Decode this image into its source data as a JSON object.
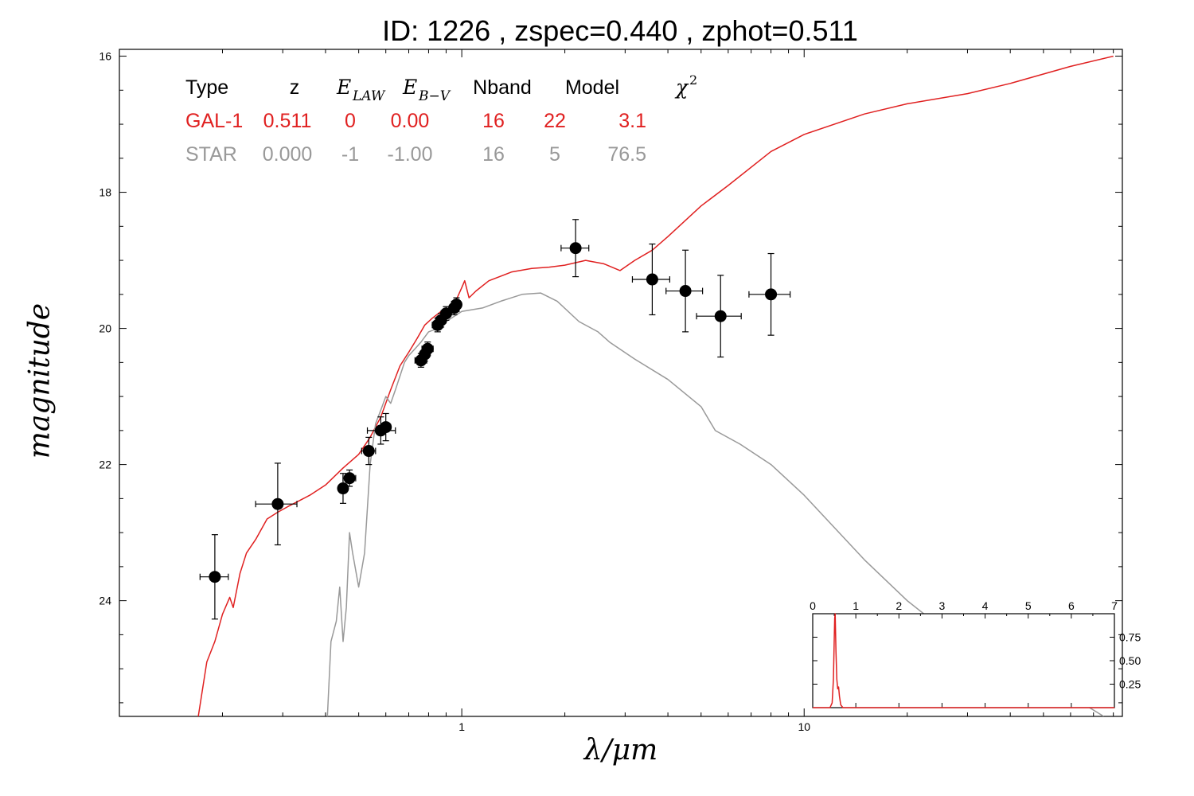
{
  "chart_data": [
    {
      "type": "line",
      "title": "ID:  1226  , zspec=0.440 , zphot=0.511",
      "xlabel": "λ/μm",
      "ylabel": "magnitude",
      "xscale": "log",
      "xlim": [
        0.1,
        85
      ],
      "ylim": [
        25.7,
        15.9
      ],
      "y_ticks": [
        "16",
        "18",
        "20",
        "22",
        "24"
      ],
      "x_ticks": [
        "1",
        "10"
      ],
      "grid": false,
      "legend": {
        "placement": "top-left",
        "columns": [
          "Type",
          "z",
          "E_LAW",
          "E_B−V",
          "Nband",
          "Model",
          "χ²"
        ],
        "column_headers": {
          "type": "Type",
          "z": "z",
          "elaw": "E",
          "elaw_sub": "LAW",
          "ebv": "E",
          "ebv_sub": "B−V",
          "nband": "Nband",
          "model": "Model",
          "chi": "χ",
          "chi_sup": "2"
        },
        "rows": [
          {
            "type": "GAL-1",
            "z": "0.511",
            "elaw": "0",
            "ebv": "0.00",
            "nband": "16",
            "model": "22",
            "chi2": "3.1",
            "color": "#e02020"
          },
          {
            "type": "STAR",
            "z": "0.000",
            "elaw": "-1",
            "ebv": "-1.00",
            "nband": "16",
            "model": "5",
            "chi2": "76.5",
            "color": "#999999"
          }
        ]
      },
      "series": [
        {
          "name": "GAL-1",
          "color": "#e02020",
          "x": [
            0.17,
            0.18,
            0.19,
            0.2,
            0.21,
            0.215,
            0.225,
            0.235,
            0.25,
            0.27,
            0.29,
            0.31,
            0.33,
            0.36,
            0.4,
            0.45,
            0.5,
            0.54,
            0.58,
            0.62,
            0.66,
            0.7,
            0.74,
            0.78,
            0.82,
            0.87,
            0.92,
            0.97,
            1.0,
            1.02,
            1.05,
            1.1,
            1.2,
            1.4,
            1.6,
            1.8,
            2.0,
            2.3,
            2.6,
            2.9,
            3.2,
            3.6,
            4.0,
            5.0,
            6.0,
            8.0,
            10.0,
            15.0,
            20.0,
            30.0,
            40.0,
            60.0,
            80.0
          ],
          "y": [
            25.7,
            24.9,
            24.6,
            24.2,
            23.95,
            24.1,
            23.6,
            23.3,
            23.1,
            22.8,
            22.7,
            22.62,
            22.55,
            22.45,
            22.3,
            22.05,
            21.85,
            21.6,
            21.3,
            20.9,
            20.55,
            20.35,
            20.15,
            19.95,
            19.85,
            19.75,
            19.7,
            19.55,
            19.4,
            19.3,
            19.55,
            19.45,
            19.3,
            19.17,
            19.12,
            19.1,
            19.07,
            19.0,
            19.05,
            19.15,
            19.0,
            18.85,
            18.65,
            18.2,
            17.9,
            17.4,
            17.15,
            16.85,
            16.7,
            16.55,
            16.4,
            16.15,
            16.0
          ]
        },
        {
          "name": "STAR",
          "color": "#999999",
          "x": [
            0.405,
            0.415,
            0.43,
            0.44,
            0.45,
            0.46,
            0.47,
            0.48,
            0.5,
            0.52,
            0.54,
            0.56,
            0.58,
            0.6,
            0.62,
            0.64,
            0.66,
            0.68,
            0.7,
            0.73,
            0.76,
            0.8,
            0.85,
            0.9,
            1.0,
            1.15,
            1.3,
            1.5,
            1.7,
            1.9,
            2.2,
            2.5,
            2.7,
            3.2,
            4.0,
            5.0,
            5.5,
            6.5,
            8.0,
            10.0,
            15.0,
            20.0,
            30.0,
            40.0,
            60.0,
            75.0
          ],
          "y": [
            25.7,
            24.6,
            24.3,
            23.8,
            24.6,
            24.1,
            23.0,
            23.3,
            23.8,
            23.3,
            22.0,
            21.4,
            21.2,
            21.0,
            21.1,
            20.9,
            20.7,
            20.5,
            20.4,
            20.3,
            20.2,
            20.05,
            20.0,
            19.9,
            19.75,
            19.7,
            19.6,
            19.5,
            19.48,
            19.6,
            19.9,
            20.05,
            20.2,
            20.45,
            20.75,
            21.15,
            21.5,
            21.7,
            22.0,
            22.45,
            23.4,
            24.0,
            24.7,
            25.0,
            25.4,
            25.7
          ]
        }
      ],
      "observations": [
        {
          "x": 0.19,
          "y": 23.65,
          "xerr": [
            0.018,
            0.018
          ],
          "yerr": [
            0.62,
            0.62
          ]
        },
        {
          "x": 0.29,
          "y": 22.58,
          "xerr": [
            0.04,
            0.04
          ],
          "yerr": [
            0.6,
            0.6
          ]
        },
        {
          "x": 0.45,
          "y": 22.35,
          "xerr": [
            0.012,
            0.012
          ],
          "yerr": [
            0.22,
            0.22
          ]
        },
        {
          "x": 0.47,
          "y": 22.2,
          "xerr": [
            0.02,
            0.02
          ],
          "yerr": [
            0.12,
            0.12
          ]
        },
        {
          "x": 0.535,
          "y": 21.8,
          "xerr": [
            0.025,
            0.025
          ],
          "yerr": [
            0.2,
            0.2
          ]
        },
        {
          "x": 0.58,
          "y": 21.5,
          "xerr": [
            0.05,
            0.06
          ],
          "yerr": [
            0.2,
            0.2
          ]
        },
        {
          "x": 0.6,
          "y": 21.45,
          "xerr": [
            0.02,
            0.02
          ],
          "yerr": [
            0.2,
            0.2
          ]
        },
        {
          "x": 0.76,
          "y": 20.47,
          "xerr": [
            0.03,
            0.03
          ],
          "yerr": [
            0.1,
            0.1
          ]
        },
        {
          "x": 0.78,
          "y": 20.38,
          "xerr": [
            0.02,
            0.02
          ],
          "yerr": [
            0.1,
            0.1
          ]
        },
        {
          "x": 0.795,
          "y": 20.3,
          "xerr": [
            0.03,
            0.03
          ],
          "yerr": [
            0.1,
            0.1
          ]
        },
        {
          "x": 0.85,
          "y": 19.95,
          "xerr": [
            0.03,
            0.03
          ],
          "yerr": [
            0.1,
            0.1
          ]
        },
        {
          "x": 0.87,
          "y": 19.88,
          "xerr": [
            0.03,
            0.03
          ],
          "yerr": [
            0.1,
            0.1
          ]
        },
        {
          "x": 0.9,
          "y": 19.78,
          "xerr": [
            0.03,
            0.03
          ],
          "yerr": [
            0.1,
            0.1
          ]
        },
        {
          "x": 0.95,
          "y": 19.7,
          "xerr": [
            0.02,
            0.02
          ],
          "yerr": [
            0.1,
            0.1
          ]
        },
        {
          "x": 0.965,
          "y": 19.65,
          "xerr": [
            0.02,
            0.02
          ],
          "yerr": [
            0.1,
            0.1
          ]
        },
        {
          "x": 2.15,
          "y": 18.82,
          "xerr": [
            0.2,
            0.2
          ],
          "yerr": [
            0.42,
            0.42
          ]
        },
        {
          "x": 3.6,
          "y": 19.28,
          "xerr": [
            0.45,
            0.45
          ],
          "yerr": [
            0.52,
            0.52
          ]
        },
        {
          "x": 4.5,
          "y": 19.45,
          "xerr": [
            0.55,
            0.55
          ],
          "yerr": [
            0.6,
            0.6
          ]
        },
        {
          "x": 5.7,
          "y": 19.82,
          "xerr": [
            0.85,
            0.85
          ],
          "yerr": [
            0.6,
            0.6
          ]
        },
        {
          "x": 8.0,
          "y": 19.5,
          "xerr": [
            1.1,
            1.1
          ],
          "yerr": [
            0.6,
            0.6
          ]
        }
      ]
    },
    {
      "type": "line",
      "title": "",
      "placement": "bottom-right inset",
      "xlim": [
        0,
        7
      ],
      "ylim": [
        0,
        1.0
      ],
      "x_ticks": [
        "0",
        "1",
        "2",
        "3",
        "4",
        "5",
        "6",
        "7"
      ],
      "y_ticks": [
        "0.25",
        "0.50",
        "0.75"
      ],
      "series": [
        {
          "name": "",
          "color": "#e02020",
          "x": [
            0,
            0.4,
            0.45,
            0.48,
            0.5,
            0.51,
            0.52,
            0.54,
            0.56,
            0.58,
            0.6,
            0.62,
            0.65,
            0.7,
            1.0,
            7.0
          ],
          "y": [
            0,
            0,
            0.05,
            0.3,
            0.75,
            0.95,
            1.0,
            0.6,
            0.3,
            0.2,
            0.22,
            0.12,
            0.03,
            0.0,
            0.0,
            0.0
          ]
        }
      ]
    }
  ]
}
